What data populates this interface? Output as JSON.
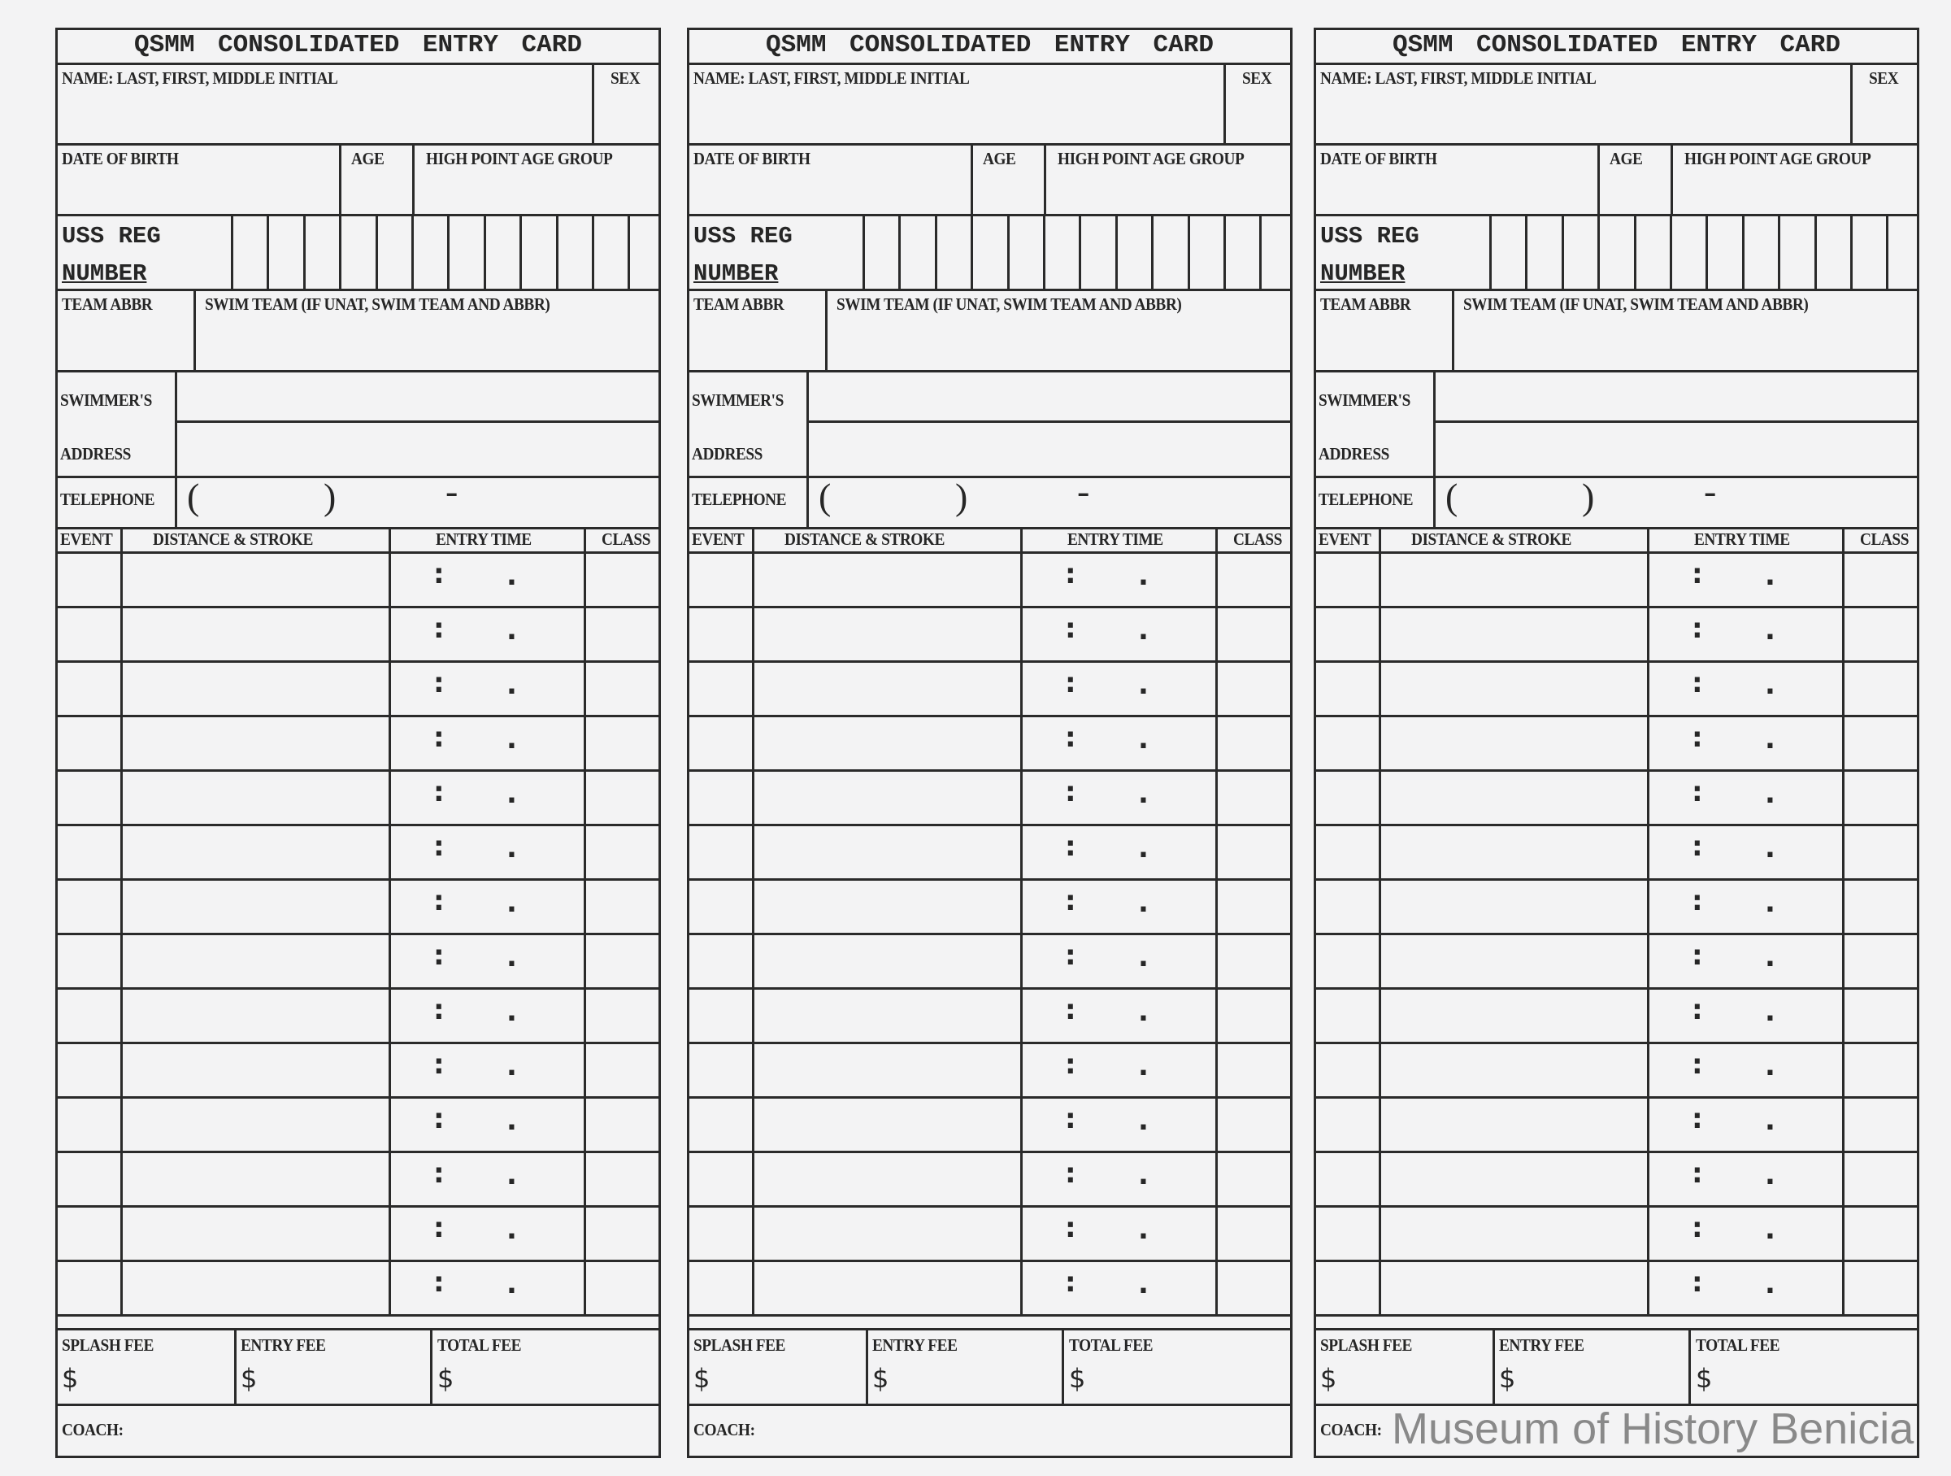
{
  "card": {
    "title": "QSMM CONSOLIDATED ENTRY CARD",
    "name_label": "NAME: LAST, FIRST, MIDDLE INITIAL",
    "sex_label": "SEX",
    "dob_label": "DATE OF BIRTH",
    "age_label": "AGE",
    "high_point_label": "HIGH POINT AGE GROUP",
    "uss_reg_line1": "USS REG",
    "uss_reg_line2": "NUMBER",
    "team_abbr_label": "TEAM ABBR",
    "swim_team_label": "SWIM TEAM (IF UNAT, SWIM TEAM AND ABBR)",
    "swimmers_label": "SWIMMER'S",
    "address_label": "ADDRESS",
    "telephone_label": "TELEPHONE",
    "phone_open": "(",
    "phone_close": ")",
    "phone_dash": "-",
    "columns": {
      "event": "EVENT",
      "distance_stroke": "DISTANCE & STROKE",
      "entry_time": "ENTRY TIME",
      "class": "CLASS"
    },
    "time_colon": ":",
    "time_dot": ".",
    "splash_fee_label": "SPLASH FEE",
    "entry_fee_label": "ENTRY FEE",
    "total_fee_label": "TOTAL FEE",
    "currency": "$",
    "coach_label": "COACH:"
  },
  "event_row_count": 14,
  "uss_reg_box_count": 12,
  "card_count": 3,
  "watermark": "Museum of History Benicia"
}
